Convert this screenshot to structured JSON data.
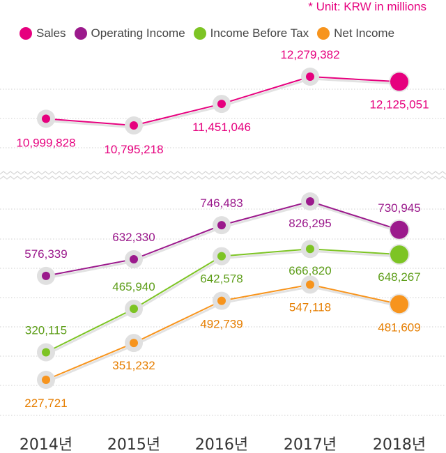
{
  "unit_note": "* Unit: KRW in millions",
  "chart_data": {
    "type": "line",
    "categories": [
      "2014년",
      "2015년",
      "2016년",
      "2017년",
      "2018년"
    ],
    "series": [
      {
        "name": "Sales",
        "color": "#e6007e",
        "values": [
          10999828,
          10795218,
          11451046,
          12279382,
          12125051
        ],
        "labels": [
          "10,999,828",
          "10,795,218",
          "11,451,046",
          "12,279,382",
          "12,125,051"
        ]
      },
      {
        "name": "Operating Income",
        "color": "#9b1a8c",
        "values": [
          576339,
          632330,
          746483,
          826295,
          730945
        ],
        "labels": [
          "576,339",
          "632,330",
          "746,483",
          "826,295",
          "730,945"
        ]
      },
      {
        "name": "Income Before Tax",
        "color": "#7dc424",
        "values": [
          320115,
          465940,
          642578,
          666820,
          648267
        ],
        "labels": [
          "320,115",
          "465,940",
          "642,578",
          "666,820",
          "648,267"
        ]
      },
      {
        "name": "Net Income",
        "color": "#f7941d",
        "values": [
          227721,
          351232,
          492739,
          547118,
          481609
        ],
        "labels": [
          "227,721",
          "351,232",
          "492,739",
          "547,118",
          "481,609"
        ]
      }
    ],
    "label_colors": {
      "Sales": "#e6007e",
      "Operating Income": "#9b1a8c",
      "Income Before Tax": "#5e9e1a",
      "Net Income": "#e67e00"
    },
    "axis_break": true,
    "grid": true,
    "legend_position": "top-left"
  }
}
